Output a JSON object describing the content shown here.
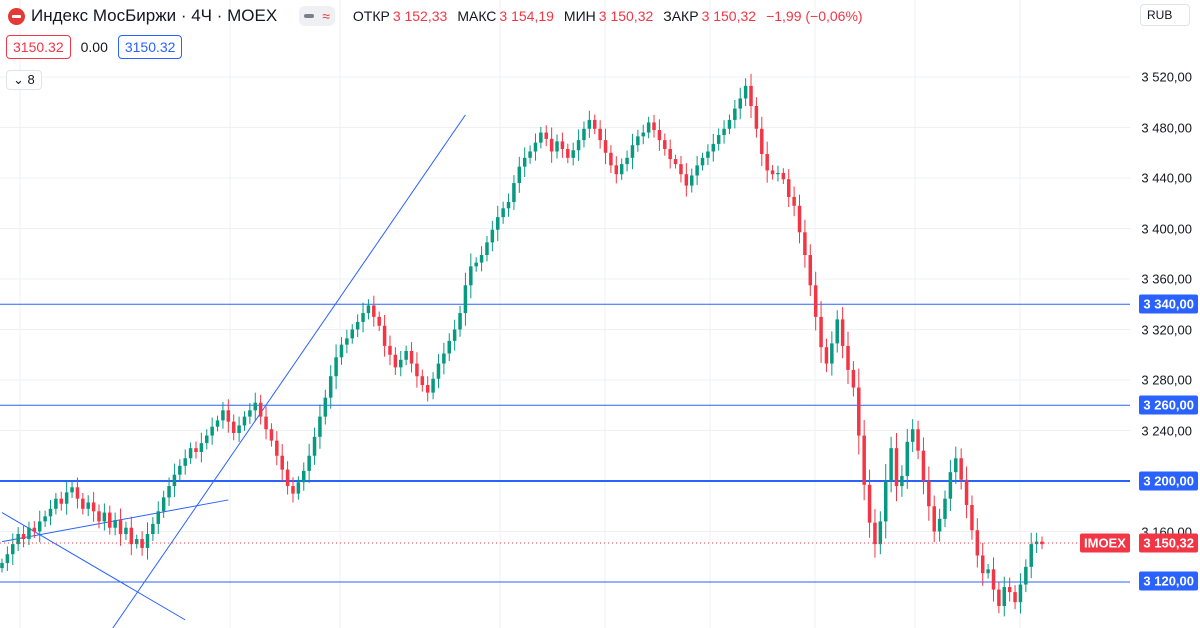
{
  "header": {
    "title": "Индекс МосБиржи · 4Ч · MOEX",
    "ohlc": [
      {
        "label": "ОТКР",
        "value": "3 152,33"
      },
      {
        "label": "МАКС",
        "value": "3 154,19"
      },
      {
        "label": "МИН",
        "value": "3 150,32"
      },
      {
        "label": "ЗАКР",
        "value": "3 150,32"
      }
    ],
    "change": "−1,99 (−0,06%)"
  },
  "controls": {
    "sell_price": "3150.32",
    "spread": "0.00",
    "buy_price": "3150.32",
    "indicators_count": "8",
    "currency": "RUB"
  },
  "badges": {
    "last_symbol": "IMOEX",
    "last_price": "3 150,32",
    "levels": [
      "3 340,00",
      "3 260,00",
      "3 200,00",
      "3 120,00"
    ]
  },
  "chart_data": {
    "type": "candlestick",
    "ylim": [
      3080,
      3535
    ],
    "y_ticks": [
      "3 520,00",
      "3 480,00",
      "3 440,00",
      "3 400,00",
      "3 360,00",
      "3 320,00",
      "3 280,00",
      "3 240,00",
      "3 160,00"
    ],
    "y_tick_values": [
      3520,
      3480,
      3440,
      3400,
      3360,
      3320,
      3280,
      3240,
      3160
    ],
    "horizontal_levels": [
      3340,
      3260,
      3200,
      3120
    ],
    "last_price": 3150.32,
    "trendlines": [
      {
        "from": [
          0,
          3152
        ],
        "to": [
          42,
          3185
        ]
      },
      {
        "from": [
          0,
          3175
        ],
        "to": [
          34,
          3090
        ]
      },
      {
        "from": [
          20,
          3080
        ],
        "to": [
          86,
          3490
        ]
      }
    ],
    "close": [
      3135,
      3142,
      3150,
      3158,
      3154,
      3163,
      3160,
      3168,
      3172,
      3178,
      3186,
      3182,
      3191,
      3195,
      3186,
      3178,
      3183,
      3176,
      3168,
      3175,
      3163,
      3169,
      3158,
      3163,
      3150,
      3154,
      3147,
      3158,
      3166,
      3176,
      3187,
      3196,
      3205,
      3212,
      3218,
      3226,
      3223,
      3230,
      3236,
      3243,
      3248,
      3256,
      3247,
      3238,
      3244,
      3251,
      3256,
      3262,
      3251,
      3241,
      3232,
      3220,
      3209,
      3196,
      3190,
      3199,
      3208,
      3220,
      3235,
      3251,
      3266,
      3283,
      3298,
      3308,
      3313,
      3320,
      3326,
      3333,
      3339,
      3330,
      3323,
      3307,
      3300,
      3290,
      3296,
      3303,
      3293,
      3283,
      3276,
      3270,
      3281,
      3293,
      3301,
      3311,
      3320,
      3333,
      3355,
      3370,
      3373,
      3379,
      3389,
      3399,
      3409,
      3416,
      3421,
      3436,
      3449,
      3456,
      3461,
      3468,
      3476,
      3471,
      3461,
      3469,
      3463,
      3456,
      3462,
      3470,
      3479,
      3486,
      3479,
      3470,
      3460,
      3450,
      3443,
      3451,
      3456,
      3466,
      3473,
      3476,
      3484,
      3478,
      3470,
      3463,
      3455,
      3451,
      3443,
      3434,
      3442,
      3450,
      3456,
      3461,
      3467,
      3474,
      3479,
      3486,
      3495,
      3503,
      3513,
      3497,
      3479,
      3459,
      3446,
      3443,
      3444,
      3439,
      3425,
      3418,
      3397,
      3379,
      3355,
      3330,
      3306,
      3293,
      3309,
      3328,
      3307,
      3288,
      3274,
      3236,
      3197,
      3167,
      3150,
      3168,
      3200,
      3226,
      3196,
      3204,
      3231,
      3241,
      3224,
      3200,
      3180,
      3160,
      3170,
      3186,
      3207,
      3218,
      3201,
      3181,
      3161,
      3141,
      3127,
      3130,
      3114,
      3101,
      3116,
      3112,
      3104,
      3118,
      3132,
      3150,
      3152,
      3150
    ]
  }
}
